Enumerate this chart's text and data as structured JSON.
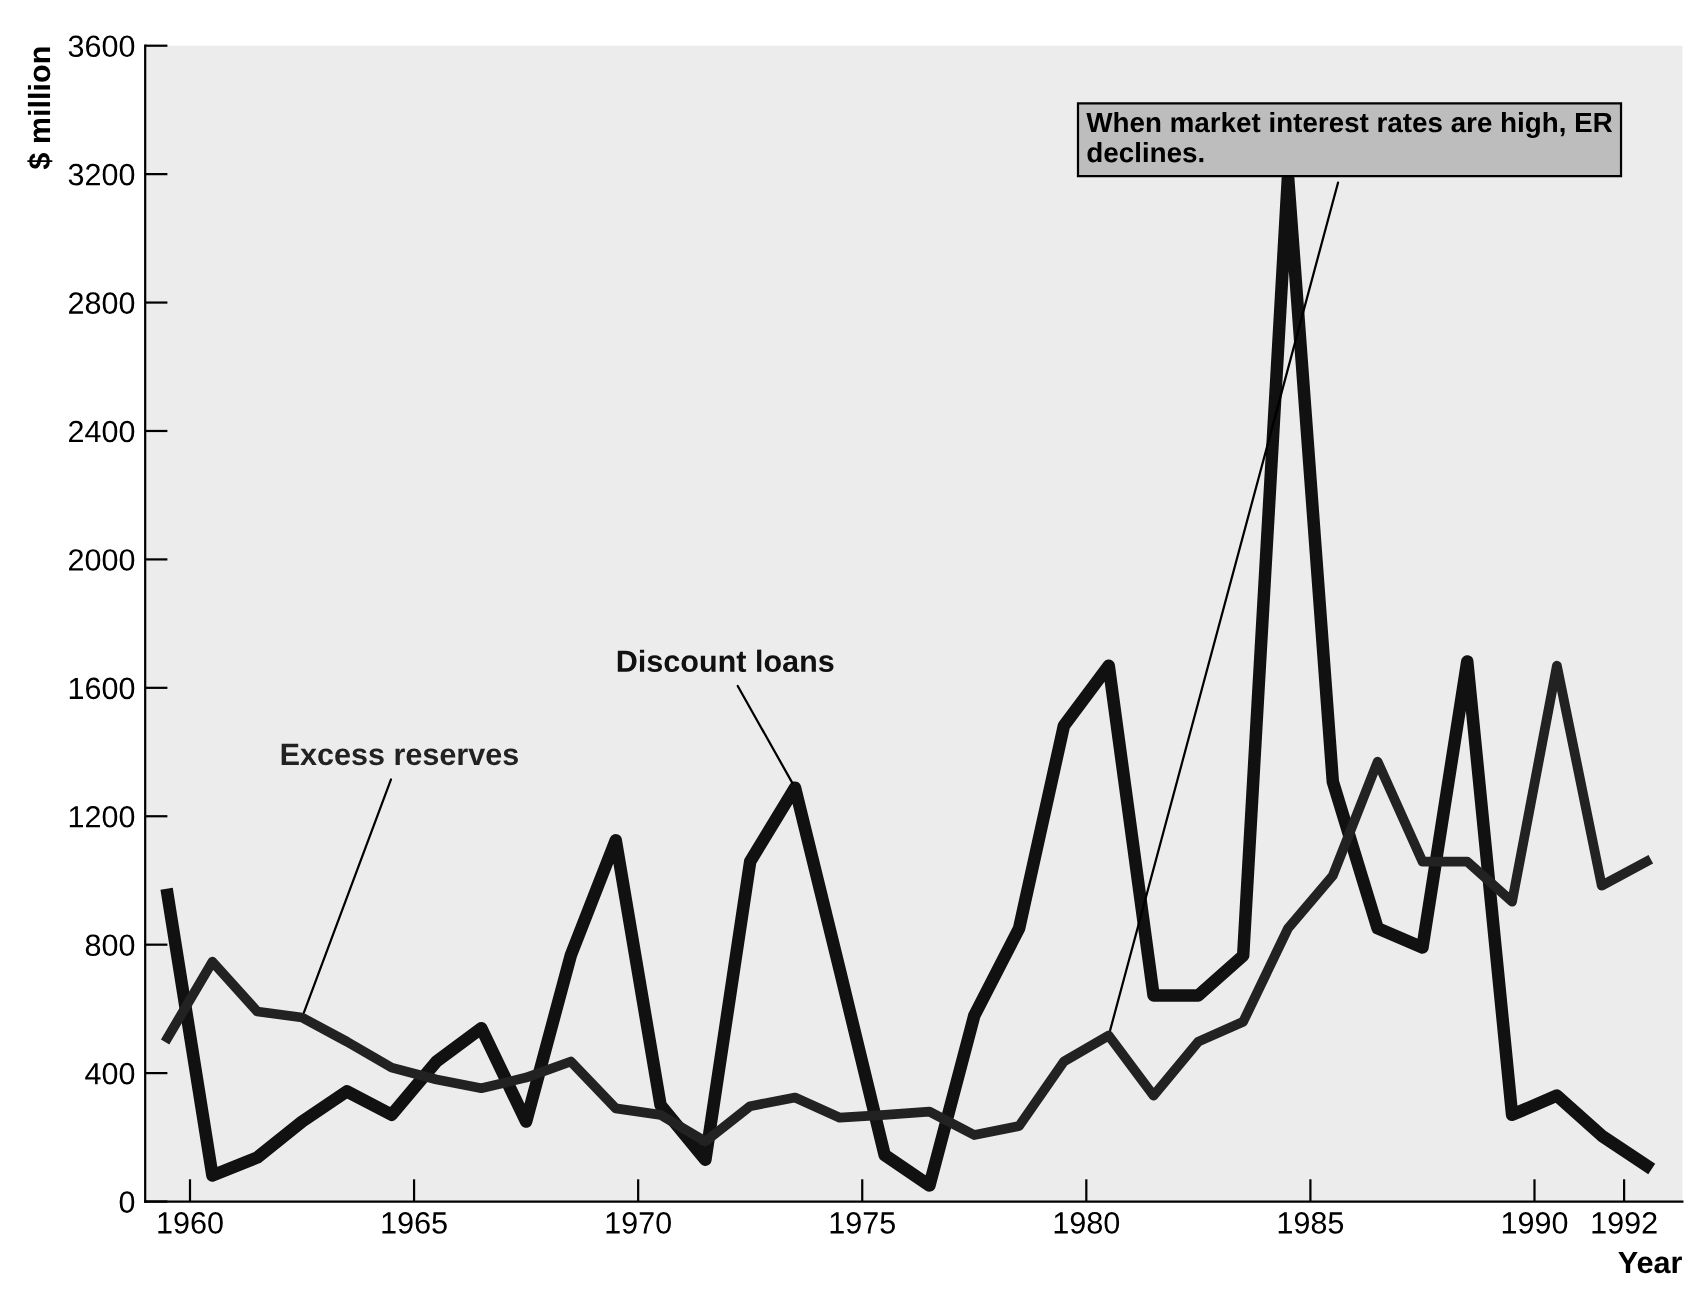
{
  "chart_data": {
    "type": "line",
    "x": [
      1959.5,
      1960.5,
      1961.5,
      1962.5,
      1963.5,
      1964.5,
      1965.5,
      1966.5,
      1967.5,
      1968.5,
      1969.5,
      1970.5,
      1971.5,
      1972.5,
      1973.5,
      1974.5,
      1975.5,
      1976.5,
      1977.5,
      1978.5,
      1979.5,
      1980.5,
      1981.5,
      1982.5,
      1983.5,
      1984.5,
      1985.5,
      1986.5,
      1987.5,
      1988.5,
      1989.5,
      1990.5,
      1991.5,
      1992.5
    ],
    "series": [
      {
        "name": "Discount loans",
        "color": "#111111",
        "values": [
          955,
          81,
          137,
          249,
          343,
          270,
          436,
          540,
          249,
          768,
          1125,
          300,
          130,
          1059,
          1289,
          720,
          145,
          50,
          579,
          851,
          1482,
          1669,
          642,
          642,
          766,
          3195,
          1308,
          851,
          791,
          1682,
          270,
          330,
          205,
          112
        ]
      },
      {
        "name": "Excess reserves",
        "color": "#222222",
        "values": [
          510,
          747,
          592,
          573,
          498,
          417,
          380,
          353,
          386,
          436,
          290,
          270,
          187,
          297,
          324,
          261,
          270,
          280,
          207,
          235,
          436,
          517,
          330,
          498,
          560,
          851,
          1015,
          1370,
          1059,
          1059,
          934,
          1669,
          984,
          1059
        ]
      }
    ],
    "xlabel": "Year",
    "ylabel": "$ million",
    "annotations": [
      {
        "text": "When market interest rates are high, ER declines.",
        "x": 1980.5,
        "y": 517
      }
    ],
    "xlim": [
      1959,
      1993.3
    ],
    "ylim": [
      0,
      3600
    ],
    "xticks": [
      1960,
      1965,
      1970,
      1975,
      1980,
      1985,
      1990,
      1992
    ],
    "yticks": [
      0,
      400,
      800,
      1200,
      1600,
      2000,
      2400,
      2800,
      3200,
      3600
    ],
    "grid": false,
    "legend": false
  }
}
